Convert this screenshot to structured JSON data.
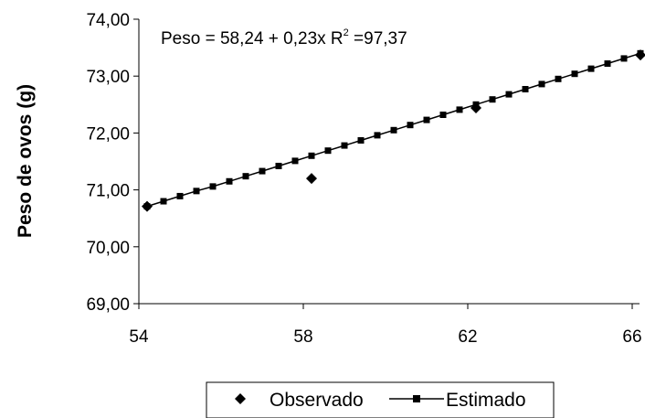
{
  "chart_data": {
    "type": "line",
    "title": "",
    "xlabel": "",
    "ylabel": "Peso de ovos (g)",
    "annotation": {
      "prefix": "Peso = 58,24 + 0,23x R",
      "sup": "2",
      "suffix": " =97,37"
    },
    "xlim": [
      54,
      66
    ],
    "ylim": [
      69,
      74
    ],
    "x_ticks": [
      "54",
      "58",
      "62",
      "66"
    ],
    "y_ticks": [
      "69,00",
      "70,00",
      "71,00",
      "72,00",
      "73,00",
      "74,00"
    ],
    "grid": false,
    "legend_position": "bottom",
    "series": [
      {
        "name": "Observado",
        "marker": "diamond",
        "line": false,
        "x": [
          54.2,
          58.2,
          62.2,
          66.2
        ],
        "y": [
          70.71,
          71.2,
          72.44,
          73.37
        ]
      },
      {
        "name": "Estimado",
        "marker": "square",
        "line": true,
        "x": [
          54.2,
          54.6,
          55.0,
          55.4,
          55.8,
          56.2,
          56.6,
          57.0,
          57.4,
          57.8,
          58.2,
          58.6,
          59.0,
          59.4,
          59.8,
          60.2,
          60.6,
          61.0,
          61.4,
          61.8,
          62.2,
          62.6,
          63.0,
          63.4,
          63.8,
          64.2,
          64.6,
          65.0,
          65.4,
          65.8,
          66.2
        ],
        "y": [
          70.71,
          70.8,
          70.89,
          70.98,
          71.06,
          71.15,
          71.24,
          71.33,
          71.42,
          71.51,
          71.6,
          71.69,
          71.78,
          71.87,
          71.96,
          72.05,
          72.14,
          72.23,
          72.32,
          72.41,
          72.5,
          72.59,
          72.68,
          72.77,
          72.86,
          72.95,
          73.04,
          73.13,
          73.22,
          73.31,
          73.4
        ]
      }
    ]
  }
}
